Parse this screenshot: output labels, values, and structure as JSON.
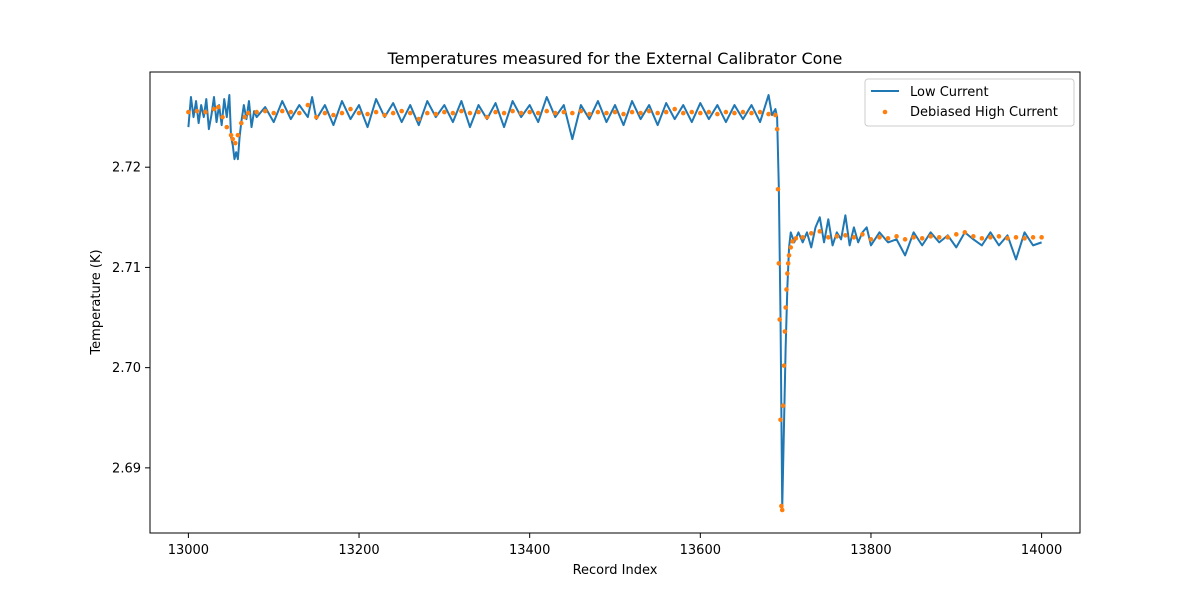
{
  "chart_data": {
    "type": "line",
    "title": "Temperatures measured for the External Calibrator Cone",
    "xlabel": "Record Index",
    "ylabel": "Temperature (K)",
    "xlim": [
      12955,
      14045
    ],
    "ylim": [
      2.6835,
      2.7295
    ],
    "xticks": [
      13000,
      13200,
      13400,
      13600,
      13800,
      14000
    ],
    "yticks": [
      2.69,
      2.7,
      2.71,
      2.72
    ],
    "ytick_labels": [
      "2.69",
      "2.70",
      "2.71",
      "2.72"
    ],
    "legend_position": "top-right",
    "series": [
      {
        "name": "Low Current",
        "style": "line",
        "color": "#1f77b4",
        "points": [
          [
            13000,
            2.724
          ],
          [
            13003,
            2.727
          ],
          [
            13006,
            2.725
          ],
          [
            13009,
            2.7266
          ],
          [
            13012,
            2.7244
          ],
          [
            13015,
            2.7262
          ],
          [
            13018,
            2.725
          ],
          [
            13021,
            2.7268
          ],
          [
            13024,
            2.7238
          ],
          [
            13027,
            2.7252
          ],
          [
            13030,
            2.727
          ],
          [
            13033,
            2.7245
          ],
          [
            13036,
            2.7262
          ],
          [
            13039,
            2.7242
          ],
          [
            13042,
            2.7268
          ],
          [
            13045,
            2.725
          ],
          [
            13048,
            2.7272
          ],
          [
            13050,
            2.723
          ],
          [
            13052,
            2.7222
          ],
          [
            13054,
            2.7208
          ],
          [
            13056,
            2.7215
          ],
          [
            13058,
            2.7208
          ],
          [
            13060,
            2.723
          ],
          [
            13062,
            2.7245
          ],
          [
            13065,
            2.7262
          ],
          [
            13068,
            2.7248
          ],
          [
            13071,
            2.7266
          ],
          [
            13074,
            2.724
          ],
          [
            13077,
            2.7256
          ],
          [
            13080,
            2.725
          ],
          [
            13090,
            2.726
          ],
          [
            13100,
            2.7245
          ],
          [
            13110,
            2.7266
          ],
          [
            13120,
            2.7248
          ],
          [
            13130,
            2.7262
          ],
          [
            13140,
            2.725
          ],
          [
            13145,
            2.727
          ],
          [
            13150,
            2.7248
          ],
          [
            13160,
            2.7262
          ],
          [
            13170,
            2.7242
          ],
          [
            13180,
            2.7266
          ],
          [
            13190,
            2.7248
          ],
          [
            13200,
            2.7262
          ],
          [
            13210,
            2.724
          ],
          [
            13220,
            2.7268
          ],
          [
            13230,
            2.725
          ],
          [
            13240,
            2.7264
          ],
          [
            13250,
            2.7245
          ],
          [
            13260,
            2.7262
          ],
          [
            13270,
            2.7242
          ],
          [
            13280,
            2.7266
          ],
          [
            13290,
            2.725
          ],
          [
            13300,
            2.7262
          ],
          [
            13310,
            2.7245
          ],
          [
            13320,
            2.7266
          ],
          [
            13330,
            2.724
          ],
          [
            13340,
            2.7262
          ],
          [
            13350,
            2.7248
          ],
          [
            13360,
            2.7264
          ],
          [
            13370,
            2.724
          ],
          [
            13380,
            2.7266
          ],
          [
            13390,
            2.725
          ],
          [
            13400,
            2.7262
          ],
          [
            13410,
            2.7245
          ],
          [
            13420,
            2.727
          ],
          [
            13430,
            2.725
          ],
          [
            13440,
            2.7262
          ],
          [
            13450,
            2.7228
          ],
          [
            13460,
            2.7262
          ],
          [
            13470,
            2.7248
          ],
          [
            13480,
            2.7266
          ],
          [
            13490,
            2.7245
          ],
          [
            13500,
            2.7262
          ],
          [
            13510,
            2.7242
          ],
          [
            13520,
            2.7266
          ],
          [
            13530,
            2.7248
          ],
          [
            13540,
            2.7262
          ],
          [
            13550,
            2.7242
          ],
          [
            13560,
            2.7264
          ],
          [
            13570,
            2.7248
          ],
          [
            13580,
            2.7262
          ],
          [
            13590,
            2.7245
          ],
          [
            13600,
            2.7264
          ],
          [
            13610,
            2.7248
          ],
          [
            13620,
            2.7262
          ],
          [
            13630,
            2.7245
          ],
          [
            13640,
            2.7262
          ],
          [
            13650,
            2.7248
          ],
          [
            13660,
            2.7262
          ],
          [
            13670,
            2.7245
          ],
          [
            13680,
            2.7272
          ],
          [
            13684,
            2.7252
          ],
          [
            13688,
            2.7258
          ],
          [
            13690,
            2.725
          ],
          [
            13692,
            2.718
          ],
          [
            13694,
            2.705
          ],
          [
            13696,
            2.686
          ],
          [
            13698,
            2.694
          ],
          [
            13700,
            2.702
          ],
          [
            13702,
            2.708
          ],
          [
            13704,
            2.712
          ],
          [
            13706,
            2.7135
          ],
          [
            13710,
            2.7125
          ],
          [
            13715,
            2.7135
          ],
          [
            13720,
            2.7125
          ],
          [
            13725,
            2.7135
          ],
          [
            13730,
            2.712
          ],
          [
            13735,
            2.714
          ],
          [
            13740,
            2.715
          ],
          [
            13745,
            2.7125
          ],
          [
            13750,
            2.7148
          ],
          [
            13755,
            2.7122
          ],
          [
            13760,
            2.7135
          ],
          [
            13765,
            2.7128
          ],
          [
            13770,
            2.7152
          ],
          [
            13775,
            2.7122
          ],
          [
            13780,
            2.714
          ],
          [
            13785,
            2.7125
          ],
          [
            13790,
            2.7135
          ],
          [
            13795,
            2.714
          ],
          [
            13800,
            2.7122
          ],
          [
            13810,
            2.7135
          ],
          [
            13820,
            2.7125
          ],
          [
            13830,
            2.7128
          ],
          [
            13840,
            2.7112
          ],
          [
            13850,
            2.7135
          ],
          [
            13860,
            2.7122
          ],
          [
            13870,
            2.7135
          ],
          [
            13880,
            2.7125
          ],
          [
            13890,
            2.7132
          ],
          [
            13900,
            2.712
          ],
          [
            13910,
            2.7135
          ],
          [
            13920,
            2.7128
          ],
          [
            13930,
            2.7122
          ],
          [
            13940,
            2.7135
          ],
          [
            13950,
            2.7122
          ],
          [
            13960,
            2.7132
          ],
          [
            13970,
            2.7108
          ],
          [
            13980,
            2.7135
          ],
          [
            13990,
            2.7122
          ],
          [
            14000,
            2.7125
          ]
        ]
      },
      {
        "name": "Debiased High Current",
        "style": "scatter",
        "color": "#ff7f0e",
        "points": [
          [
            13000,
            2.7255
          ],
          [
            13010,
            2.7256
          ],
          [
            13020,
            2.7255
          ],
          [
            13030,
            2.7258
          ],
          [
            13035,
            2.726
          ],
          [
            13040,
            2.725
          ],
          [
            13045,
            2.724
          ],
          [
            13050,
            2.7232
          ],
          [
            13052,
            2.7228
          ],
          [
            13055,
            2.7224
          ],
          [
            13058,
            2.7232
          ],
          [
            13062,
            2.7244
          ],
          [
            13066,
            2.725
          ],
          [
            13070,
            2.7254
          ],
          [
            13080,
            2.7255
          ],
          [
            13090,
            2.7256
          ],
          [
            13100,
            2.7254
          ],
          [
            13110,
            2.7256
          ],
          [
            13120,
            2.7255
          ],
          [
            13130,
            2.7254
          ],
          [
            13140,
            2.7262
          ],
          [
            13150,
            2.725
          ],
          [
            13160,
            2.7254
          ],
          [
            13170,
            2.7252
          ],
          [
            13180,
            2.7254
          ],
          [
            13190,
            2.7258
          ],
          [
            13200,
            2.7254
          ],
          [
            13210,
            2.7253
          ],
          [
            13220,
            2.7255
          ],
          [
            13230,
            2.7252
          ],
          [
            13240,
            2.7254
          ],
          [
            13250,
            2.7256
          ],
          [
            13260,
            2.7254
          ],
          [
            13270,
            2.7248
          ],
          [
            13280,
            2.7254
          ],
          [
            13290,
            2.7253
          ],
          [
            13300,
            2.7255
          ],
          [
            13310,
            2.7254
          ],
          [
            13320,
            2.7256
          ],
          [
            13330,
            2.7254
          ],
          [
            13340,
            2.7255
          ],
          [
            13350,
            2.725
          ],
          [
            13360,
            2.7255
          ],
          [
            13370,
            2.7254
          ],
          [
            13380,
            2.7256
          ],
          [
            13390,
            2.7254
          ],
          [
            13400,
            2.7255
          ],
          [
            13410,
            2.7254
          ],
          [
            13420,
            2.7256
          ],
          [
            13430,
            2.7254
          ],
          [
            13440,
            2.7255
          ],
          [
            13450,
            2.7254
          ],
          [
            13460,
            2.7256
          ],
          [
            13470,
            2.7253
          ],
          [
            13480,
            2.7255
          ],
          [
            13490,
            2.7254
          ],
          [
            13500,
            2.7255
          ],
          [
            13510,
            2.7253
          ],
          [
            13520,
            2.7255
          ],
          [
            13530,
            2.7254
          ],
          [
            13540,
            2.7256
          ],
          [
            13550,
            2.7254
          ],
          [
            13560,
            2.7255
          ],
          [
            13570,
            2.7258
          ],
          [
            13580,
            2.7254
          ],
          [
            13590,
            2.7255
          ],
          [
            13600,
            2.7254
          ],
          [
            13610,
            2.7255
          ],
          [
            13620,
            2.7253
          ],
          [
            13630,
            2.7255
          ],
          [
            13640,
            2.7254
          ],
          [
            13650,
            2.7255
          ],
          [
            13660,
            2.7254
          ],
          [
            13670,
            2.7255
          ],
          [
            13680,
            2.7253
          ],
          [
            13688,
            2.7252
          ],
          [
            13690,
            2.7238
          ],
          [
            13691,
            2.7178
          ],
          [
            13692,
            2.7104
          ],
          [
            13693,
            2.7048
          ],
          [
            13694,
            2.6948
          ],
          [
            13695,
            2.6862
          ],
          [
            13696,
            2.6858
          ],
          [
            13697,
            2.6962
          ],
          [
            13698,
            2.7002
          ],
          [
            13699,
            2.7036
          ],
          [
            13700,
            2.706
          ],
          [
            13701,
            2.7078
          ],
          [
            13702,
            2.7094
          ],
          [
            13703,
            2.7104
          ],
          [
            13704,
            2.7112
          ],
          [
            13706,
            2.712
          ],
          [
            13708,
            2.7126
          ],
          [
            13712,
            2.7129
          ],
          [
            13720,
            2.713
          ],
          [
            13730,
            2.7134
          ],
          [
            13740,
            2.7136
          ],
          [
            13750,
            2.713
          ],
          [
            13760,
            2.7131
          ],
          [
            13770,
            2.7132
          ],
          [
            13780,
            2.713
          ],
          [
            13790,
            2.7133
          ],
          [
            13800,
            2.7128
          ],
          [
            13810,
            2.713
          ],
          [
            13820,
            2.7129
          ],
          [
            13830,
            2.7131
          ],
          [
            13840,
            2.7128
          ],
          [
            13850,
            2.713
          ],
          [
            13860,
            2.7129
          ],
          [
            13870,
            2.7131
          ],
          [
            13880,
            2.713
          ],
          [
            13890,
            2.713
          ],
          [
            13900,
            2.7133
          ],
          [
            13910,
            2.7135
          ],
          [
            13920,
            2.7131
          ],
          [
            13930,
            2.7129
          ],
          [
            13940,
            2.713
          ],
          [
            13950,
            2.7131
          ],
          [
            13960,
            2.7129
          ],
          [
            13970,
            2.713
          ],
          [
            13980,
            2.7129
          ],
          [
            13990,
            2.713
          ],
          [
            14000,
            2.713
          ]
        ]
      }
    ]
  }
}
